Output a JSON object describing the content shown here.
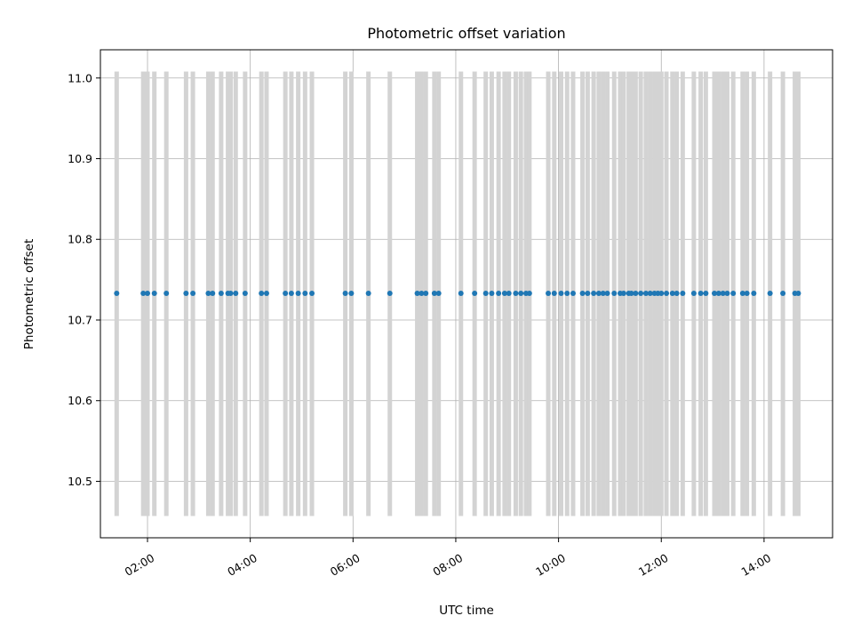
{
  "chart_data": {
    "type": "scatter",
    "title": "Photometric offset variation",
    "xlabel": "UTC time",
    "ylabel": "Photometric offset",
    "x_ticks": [
      "02:00",
      "04:00",
      "06:00",
      "08:00",
      "10:00",
      "12:00",
      "14:00"
    ],
    "y_ticks": [
      "10.5",
      "10.6",
      "10.7",
      "10.8",
      "10.9",
      "11.0"
    ],
    "xlim": [
      "01:05",
      "15:20"
    ],
    "ylim": [
      10.43,
      11.035
    ],
    "grid": true,
    "errorbar_range": [
      10.457,
      11.008
    ],
    "colors": {
      "points": "#1f77b4",
      "errorbars": "#d3d3d3"
    },
    "series": [
      {
        "x": [
          "01:24",
          "01:55",
          "02:00",
          "02:08",
          "02:22",
          "02:45",
          "02:53",
          "03:11",
          "03:16",
          "03:26",
          "03:34",
          "03:37",
          "03:43",
          "03:54",
          "04:13",
          "04:19",
          "04:41",
          "04:48",
          "04:56",
          "05:04",
          "05:12",
          "05:51",
          "05:58",
          "06:18",
          "06:43",
          "07:15",
          "07:20",
          "07:25",
          "07:35",
          "07:40",
          "08:06",
          "08:22",
          "08:35",
          "08:42",
          "08:50",
          "08:57",
          "09:02",
          "09:10",
          "09:16",
          "09:22",
          "09:26",
          "09:48",
          "09:55",
          "10:03",
          "10:10",
          "10:17",
          "10:28",
          "10:34",
          "10:41",
          "10:47",
          "10:52",
          "10:57",
          "11:05",
          "11:12",
          "11:16",
          "11:22",
          "11:25",
          "11:30",
          "11:36",
          "11:42",
          "11:47",
          "11:52",
          "11:56",
          "12:00",
          "12:06",
          "12:13",
          "12:18",
          "12:25",
          "12:38",
          "12:46",
          "12:52",
          "13:02",
          "13:07",
          "13:12",
          "13:17",
          "13:24",
          "13:35",
          "13:40",
          "13:48",
          "14:07",
          "14:22",
          "14:36",
          "14:40"
        ],
        "y": [
          10.733,
          10.733,
          10.733,
          10.733,
          10.733,
          10.733,
          10.733,
          10.733,
          10.733,
          10.733,
          10.733,
          10.733,
          10.733,
          10.733,
          10.733,
          10.733,
          10.733,
          10.733,
          10.733,
          10.733,
          10.733,
          10.733,
          10.733,
          10.733,
          10.733,
          10.733,
          10.733,
          10.733,
          10.733,
          10.733,
          10.733,
          10.733,
          10.733,
          10.733,
          10.733,
          10.733,
          10.733,
          10.733,
          10.733,
          10.733,
          10.733,
          10.733,
          10.733,
          10.733,
          10.733,
          10.733,
          10.733,
          10.733,
          10.733,
          10.733,
          10.733,
          10.733,
          10.733,
          10.733,
          10.733,
          10.733,
          10.733,
          10.733,
          10.733,
          10.733,
          10.733,
          10.733,
          10.733,
          10.733,
          10.733,
          10.733,
          10.733,
          10.733,
          10.733,
          10.733,
          10.733,
          10.733,
          10.733,
          10.733,
          10.733,
          10.733,
          10.733,
          10.733,
          10.733,
          10.733,
          10.733,
          10.733,
          10.733
        ]
      }
    ]
  }
}
